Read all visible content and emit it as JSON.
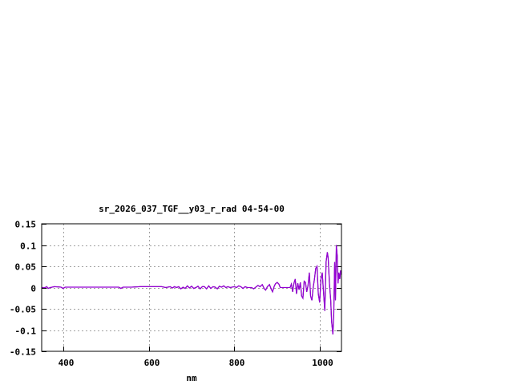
{
  "chart_data": {
    "type": "line",
    "title": "sr_2026_037_TGF__y03_r_rad 04-54-00",
    "xlabel": "nm",
    "ylabel": "",
    "xlim": [
      350,
      1050
    ],
    "ylim": [
      -0.15,
      0.15
    ],
    "xticks": [
      400,
      600,
      800,
      1000
    ],
    "xtick_labels": [
      "400",
      "600",
      "800",
      "1000"
    ],
    "yticks": [
      0.15,
      0.1,
      0.05,
      0,
      -0.05,
      -0.1,
      -0.15
    ],
    "ytick_labels": [
      "0.15",
      "0.1",
      "0.05",
      "0",
      "-0.05",
      "-0.1",
      "-0.15"
    ],
    "grid": true,
    "legend": "none",
    "series": [
      {
        "color": "#9400d3",
        "points": [
          [
            350,
            0
          ],
          [
            358,
            0
          ],
          [
            362,
            0.002
          ],
          [
            365,
            -0.002
          ],
          [
            370,
            0
          ],
          [
            380,
            0.002
          ],
          [
            395,
            0.001
          ],
          [
            400,
            -0.002
          ],
          [
            405,
            0.001
          ],
          [
            420,
            0.001
          ],
          [
            440,
            0.001
          ],
          [
            460,
            0.001
          ],
          [
            480,
            0.001
          ],
          [
            500,
            0.001
          ],
          [
            520,
            0.001
          ],
          [
            530,
            0.001
          ],
          [
            535,
            -0.002
          ],
          [
            540,
            0.001
          ],
          [
            560,
            0.001
          ],
          [
            580,
            0.002
          ],
          [
            600,
            0.002
          ],
          [
            630,
            0.002
          ],
          [
            640,
            0
          ],
          [
            650,
            0.002
          ],
          [
            655,
            -0.001
          ],
          [
            660,
            0.002
          ],
          [
            665,
            0
          ],
          [
            670,
            0.002
          ],
          [
            675,
            -0.003
          ],
          [
            680,
            0.001
          ],
          [
            685,
            -0.002
          ],
          [
            690,
            0.004
          ],
          [
            695,
            -0.001
          ],
          [
            700,
            0.003
          ],
          [
            705,
            -0.002
          ],
          [
            710,
            0
          ],
          [
            715,
            0.003
          ],
          [
            720,
            -0.003
          ],
          [
            725,
            0.002
          ],
          [
            730,
            0.002
          ],
          [
            735,
            -0.003
          ],
          [
            740,
            0.004
          ],
          [
            745,
            -0.002
          ],
          [
            750,
            0.002
          ],
          [
            755,
            0.001
          ],
          [
            760,
            -0.003
          ],
          [
            765,
            0.003
          ],
          [
            770,
            0.001
          ],
          [
            775,
            0.004
          ],
          [
            780,
            0
          ],
          [
            785,
            0.002
          ],
          [
            790,
            0
          ],
          [
            800,
            0.002
          ],
          [
            805,
            0
          ],
          [
            810,
            0.004
          ],
          [
            815,
            0.002
          ],
          [
            820,
            -0.002
          ],
          [
            825,
            0.002
          ],
          [
            830,
            0
          ],
          [
            840,
            0
          ],
          [
            845,
            -0.003
          ],
          [
            850,
            0.001
          ],
          [
            855,
            0.005
          ],
          [
            860,
            0.002
          ],
          [
            865,
            0.007
          ],
          [
            870,
            -0.003
          ],
          [
            873,
            -0.006
          ],
          [
            877,
            0.002
          ],
          [
            882,
            0.007
          ],
          [
            886,
            -0.004
          ],
          [
            889,
            -0.01
          ],
          [
            893,
            0.003
          ],
          [
            896,
            0.009
          ],
          [
            900,
            0.012
          ],
          [
            904,
            0.008
          ],
          [
            907,
            0
          ],
          [
            915,
            0
          ],
          [
            930,
            0
          ],
          [
            933,
            0.008
          ],
          [
            936,
            -0.01
          ],
          [
            939,
            0.01
          ],
          [
            942,
            0.02
          ],
          [
            945,
            -0.015
          ],
          [
            948,
            0.01
          ],
          [
            951,
            -0.005
          ],
          [
            954,
            0.012
          ],
          [
            957,
            -0.02
          ],
          [
            960,
            -0.025
          ],
          [
            963,
            0.015
          ],
          [
            966,
            0.012
          ],
          [
            969,
            -0.01
          ],
          [
            972,
            0.005
          ],
          [
            975,
            0.035
          ],
          [
            978,
            -0.02
          ],
          [
            981,
            -0.03
          ],
          [
            984,
            0
          ],
          [
            987,
            0.02
          ],
          [
            990,
            0.045
          ],
          [
            993,
            0.05
          ],
          [
            996,
            -0.015
          ],
          [
            999,
            -0.035
          ],
          [
            1002,
            0.02
          ],
          [
            1005,
            0.035
          ],
          [
            1008,
            -0.01
          ],
          [
            1011,
            -0.055
          ],
          [
            1014,
            0.06
          ],
          [
            1017,
            0.083
          ],
          [
            1019,
            0.07
          ],
          [
            1022,
            0.01
          ],
          [
            1025,
            -0.03
          ],
          [
            1027,
            -0.08
          ],
          [
            1030,
            -0.11
          ],
          [
            1032,
            -0.06
          ],
          [
            1034,
            0.06
          ],
          [
            1036,
            -0.03
          ],
          [
            1038,
            0.1
          ],
          [
            1040,
            0.075
          ],
          [
            1042,
            0.01
          ],
          [
            1044,
            0.035
          ],
          [
            1046,
            0.02
          ],
          [
            1048,
            0.04
          ],
          [
            1050,
            0.03
          ]
        ]
      }
    ]
  }
}
